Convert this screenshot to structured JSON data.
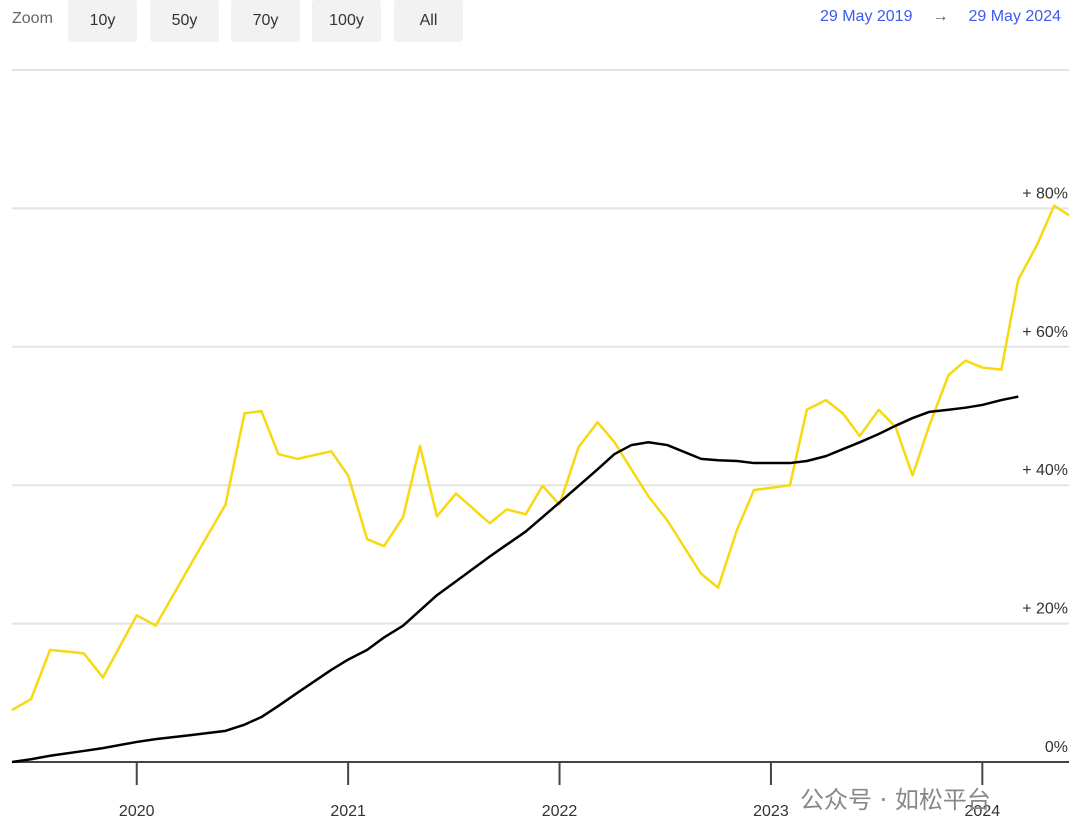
{
  "zoom": {
    "label": "Zoom",
    "buttons": [
      "10y",
      "50y",
      "70y",
      "100y",
      "All"
    ]
  },
  "range": {
    "from": "29 May 2019",
    "arrow": "→",
    "to": "29 May 2024"
  },
  "watermark": "公众号 · 如松平台",
  "chart_data": {
    "type": "line",
    "x": [
      2019.41,
      2019.5,
      2019.59,
      2019.75,
      2019.84,
      2020.0,
      2020.09,
      2020.26,
      2020.42,
      2020.51,
      2020.59,
      2020.67,
      2020.76,
      2020.92,
      2021.0,
      2021.09,
      2021.17,
      2021.26,
      2021.34,
      2021.42,
      2021.51,
      2021.67,
      2021.75,
      2021.84,
      2021.92,
      2022.0,
      2022.09,
      2022.18,
      2022.26,
      2022.34,
      2022.42,
      2022.51,
      2022.67,
      2022.75,
      2022.84,
      2022.92,
      2023.09,
      2023.17,
      2023.26,
      2023.34,
      2023.42,
      2023.51,
      2023.59,
      2023.67,
      2023.75,
      2023.84,
      2023.92,
      2024.0,
      2024.09,
      2024.17,
      2024.26,
      2024.34,
      2024.41
    ],
    "series": [
      {
        "color": "#f7d90f",
        "values": [
          7.5,
          9.1,
          16.2,
          15.7,
          12.2,
          21.2,
          19.7,
          28.8,
          37.2,
          50.4,
          50.7,
          44.5,
          43.8,
          44.9,
          41.4,
          32.2,
          31.2,
          35.4,
          45.7,
          35.5,
          38.8,
          34.5,
          36.5,
          35.8,
          39.9,
          37.2,
          45.5,
          49.1,
          46.2,
          42.3,
          38.4,
          34.9,
          27.2,
          25.2,
          33.6,
          39.3,
          40.0,
          50.9,
          52.3,
          50.4,
          47.1,
          50.9,
          48.4,
          41.4,
          48.7,
          55.9,
          58.0,
          57.0,
          56.7,
          69.7,
          74.8,
          80.4,
          79.0
        ]
      },
      {
        "color": "#000000",
        "values": [
          0,
          0.4,
          0.9,
          1.6,
          2.0,
          2.9,
          3.3,
          3.9,
          4.5,
          5.4,
          6.5,
          8.1,
          10.0,
          13.3,
          14.8,
          16.2,
          18.0,
          19.7,
          21.9,
          24.1,
          26.1,
          29.7,
          31.4,
          33.3,
          35.4,
          37.5,
          39.9,
          42.3,
          44.5,
          45.8,
          46.2,
          45.8,
          43.8,
          43.6,
          43.5,
          43.2,
          43.2,
          43.5,
          44.2,
          45.2,
          46.2,
          47.4,
          48.6,
          49.7,
          50.6,
          50.9,
          51.2,
          51.6,
          52.3,
          52.8,
          null,
          null,
          null
        ]
      }
    ],
    "xlim": [
      2019.41,
      2024.41
    ],
    "xticks": [
      2020,
      2021,
      2022,
      2023,
      2024
    ],
    "ylim": [
      0,
      100
    ],
    "yticks": [
      {
        "value": 0,
        "label": "0%"
      },
      {
        "value": 20,
        "label": "+ 20%"
      },
      {
        "value": 40,
        "label": "+ 40%"
      },
      {
        "value": 60,
        "label": "+ 60%"
      },
      {
        "value": 80,
        "label": "+ 80%"
      }
    ],
    "grid": true
  }
}
